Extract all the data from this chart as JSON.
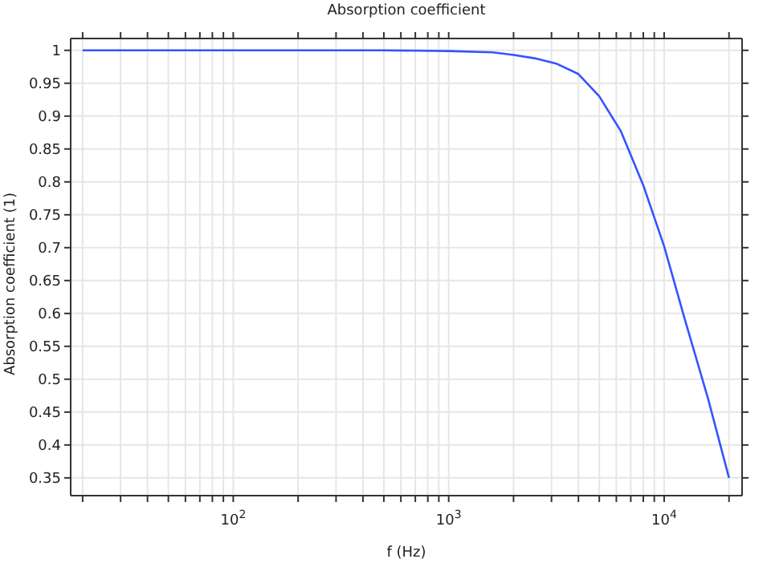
{
  "chart_data": {
    "type": "line",
    "title": "Absorption coefficient",
    "xlabel": "f (Hz)",
    "ylabel": "Absorption coefficient (1)",
    "log": "x",
    "grid": true,
    "marker": "none",
    "line_style": "solid",
    "xlim": [
      17.6,
      23000
    ],
    "ylim": [
      0.323,
      1.018
    ],
    "xticks": [
      {
        "value": 20,
        "label": null
      },
      {
        "value": 30,
        "label": null
      },
      {
        "value": 40,
        "label": null
      },
      {
        "value": 50,
        "label": null
      },
      {
        "value": 60,
        "label": null
      },
      {
        "value": 70,
        "label": null
      },
      {
        "value": 80,
        "label": null
      },
      {
        "value": 90,
        "label": null
      },
      {
        "value": 100,
        "label": "10$^{2}$"
      },
      {
        "value": 200,
        "label": null
      },
      {
        "value": 300,
        "label": null
      },
      {
        "value": 400,
        "label": null
      },
      {
        "value": 500,
        "label": null
      },
      {
        "value": 600,
        "label": null
      },
      {
        "value": 700,
        "label": null
      },
      {
        "value": 800,
        "label": null
      },
      {
        "value": 900,
        "label": null
      },
      {
        "value": 1000,
        "label": "10$^{3}$"
      },
      {
        "value": 2000,
        "label": null
      },
      {
        "value": 3000,
        "label": null
      },
      {
        "value": 4000,
        "label": null
      },
      {
        "value": 5000,
        "label": null
      },
      {
        "value": 6000,
        "label": null
      },
      {
        "value": 7000,
        "label": null
      },
      {
        "value": 8000,
        "label": null
      },
      {
        "value": 9000,
        "label": null
      },
      {
        "value": 10000,
        "label": "10$^{4}$"
      },
      {
        "value": 20000,
        "label": null
      }
    ],
    "yticks": [
      0.35,
      0.4,
      0.45,
      0.5,
      0.55,
      0.6,
      0.65,
      0.7,
      0.75,
      0.8,
      0.85,
      0.9,
      0.95,
      1
    ],
    "x": [
      20,
      100,
      500,
      1000,
      1600,
      2000,
      2500,
      3150,
      4000,
      5000,
      6300,
      8000,
      10000,
      12500,
      16000,
      20000
    ],
    "series": [
      {
        "color": "#3355ff",
        "values": [
          1,
          1,
          1,
          0.999,
          0.997,
          0.993,
          0.988,
          0.98,
          0.964,
          0.93,
          0.877,
          0.795,
          0.702,
          0.59,
          0.47,
          0.35
        ]
      }
    ]
  }
}
